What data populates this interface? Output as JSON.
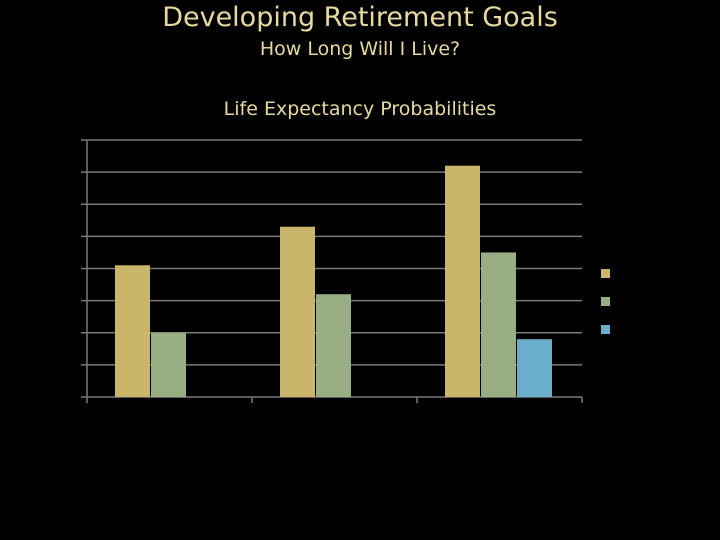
{
  "slide": {
    "title": "Developing Retirement Goals",
    "subtitle": "How Long Will I Live?"
  },
  "colors": {
    "background": "#000000",
    "title_text": "#e6d9a0",
    "gridline": "#7a7a7a",
    "series": [
      "#c9b66a",
      "#9aae84",
      "#6aaecc"
    ]
  },
  "chart_data": {
    "type": "bar",
    "title": "Life Expectancy Probabilities",
    "categories": [
      "",
      "",
      ""
    ],
    "series": [
      {
        "values": [
          4.1,
          5.3,
          7.2
        ]
      },
      {
        "values": [
          2.0,
          3.2,
          4.5
        ]
      },
      {
        "values": [
          0,
          0,
          1.8
        ]
      }
    ],
    "ylim": [
      0,
      8
    ],
    "gridlines": [
      1,
      2,
      3,
      4,
      5,
      6,
      7,
      8
    ],
    "grid": true,
    "legend": "right"
  }
}
